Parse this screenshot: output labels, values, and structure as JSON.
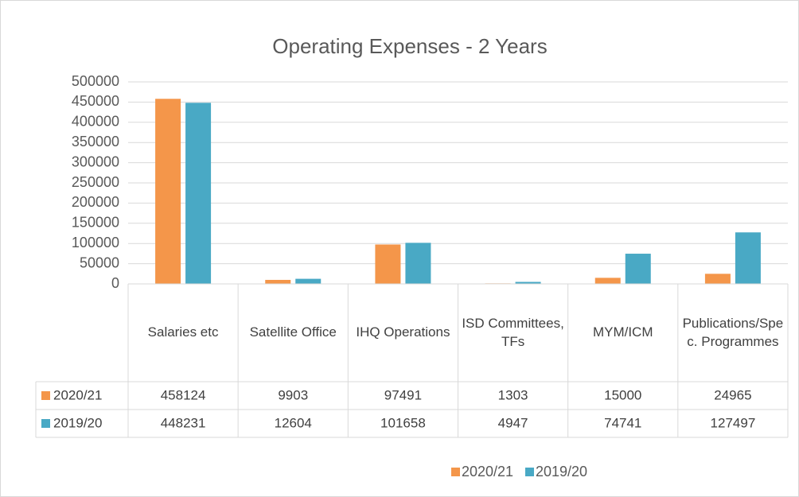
{
  "chart_data": {
    "type": "bar",
    "title": "Operating Expenses - 2 Years",
    "categories": [
      "Salaries etc",
      "Satellite Office",
      "IHQ Operations",
      "ISD Committees, TFs",
      "MYM/ICM",
      "Publications/Spec. Programmes"
    ],
    "series": [
      {
        "name": "2020/21",
        "color": "#f4964a",
        "values": [
          458124,
          9903,
          97491,
          1303,
          15000,
          24965
        ]
      },
      {
        "name": "2019/20",
        "color": "#49a9c5",
        "values": [
          448231,
          12604,
          101658,
          4947,
          74741,
          127497
        ]
      }
    ],
    "ylim": [
      0,
      500000
    ],
    "yticks": [
      0,
      50000,
      100000,
      150000,
      200000,
      250000,
      300000,
      350000,
      400000,
      450000,
      500000
    ],
    "grid": true,
    "legend": "bottom",
    "data_table": true
  }
}
